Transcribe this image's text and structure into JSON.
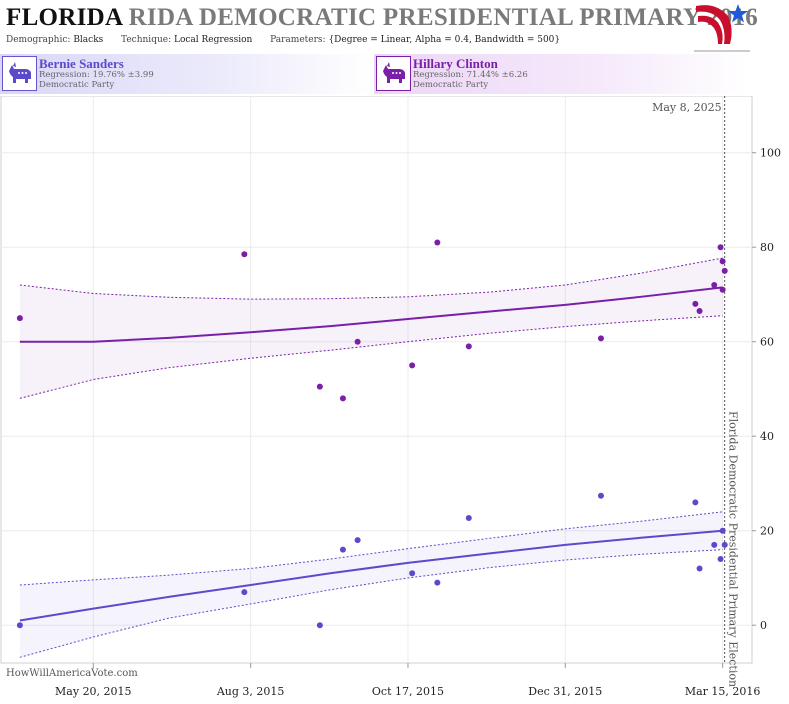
{
  "header": {
    "title_state": "FLORIDA",
    "title_rest": "RIDA DEMOCRATIC PRESIDENTIAL PRIMARY 2016",
    "demographic_label": "Demographic:",
    "demographic_value": "Blacks",
    "technique_label": "Technique:",
    "technique_value": "Local Regression",
    "parameters_label": "Parameters:",
    "parameters_value": "{Degree = Linear, Alpha = 0.4, Bandwidth = 500}"
  },
  "candidates": [
    {
      "name": "Bernie Sanders",
      "regression": "Regression: 19.76% ±3.99",
      "party": "Democratic Party",
      "color": "#5b4bcc"
    },
    {
      "name": "Hillary Clinton",
      "regression": "Regression: 71.44% ±6.26",
      "party": "Democratic Party",
      "color": "#7a1fa8"
    }
  ],
  "footer": {
    "source": "HowWillAmericaVote.com"
  },
  "chart_data": {
    "type": "scatter",
    "x_axis": {
      "ticks": [
        {
          "date": "2015-05-20",
          "label": "May 20, 2015"
        },
        {
          "date": "2015-08-03",
          "label": "Aug 3, 2015"
        },
        {
          "date": "2015-10-17",
          "label": "Oct 17, 2015"
        },
        {
          "date": "2015-12-31",
          "label": "Dec 31, 2015"
        },
        {
          "date": "2016-03-15",
          "label": "Mar 15, 2016"
        }
      ],
      "range": [
        "2015-04-06",
        "2016-03-29"
      ]
    },
    "y_axis": {
      "ticks": [
        0,
        20,
        40,
        60,
        80,
        100
      ],
      "range": [
        -8,
        112
      ],
      "position": "right"
    },
    "grid": true,
    "election_marker": {
      "date": "2016-03-15",
      "label": "Florida Democratic Presidential Primary Election"
    },
    "date_marker": {
      "label": "May 8, 2025"
    },
    "series": [
      {
        "name": "Hillary Clinton",
        "color": "#7a1fa8",
        "points": [
          {
            "x": "2015-04-15",
            "y": 65
          },
          {
            "x": "2015-07-31",
            "y": 78.5
          },
          {
            "x": "2015-09-05",
            "y": 50.5
          },
          {
            "x": "2015-09-16",
            "y": 48
          },
          {
            "x": "2015-09-23",
            "y": 60
          },
          {
            "x": "2015-10-19",
            "y": 55
          },
          {
            "x": "2015-10-31",
            "y": 81
          },
          {
            "x": "2015-11-15",
            "y": 59
          },
          {
            "x": "2016-01-17",
            "y": 60.7
          },
          {
            "x": "2016-03-02",
            "y": 68
          },
          {
            "x": "2016-03-04",
            "y": 66.5
          },
          {
            "x": "2016-03-11",
            "y": 72
          },
          {
            "x": "2016-03-14",
            "y": 80
          },
          {
            "x": "2016-03-15",
            "y": 77
          },
          {
            "x": "2016-03-16",
            "y": 75
          },
          {
            "x": "2016-03-15",
            "y": 71
          }
        ],
        "fit": [
          {
            "x": "2015-04-15",
            "y": 60.0,
            "lo": 48.0,
            "hi": 72.0
          },
          {
            "x": "2015-05-20",
            "y": 60.0,
            "lo": 52.0,
            "hi": 70.2
          },
          {
            "x": "2015-06-25",
            "y": 60.8,
            "lo": 54.5,
            "hi": 69.4
          },
          {
            "x": "2015-08-03",
            "y": 62.0,
            "lo": 56.5,
            "hi": 69.0
          },
          {
            "x": "2015-09-10",
            "y": 63.3,
            "lo": 58.2,
            "hi": 69.1
          },
          {
            "x": "2015-10-17",
            "y": 64.8,
            "lo": 60.0,
            "hi": 69.5
          },
          {
            "x": "2015-11-25",
            "y": 66.4,
            "lo": 61.8,
            "hi": 70.5
          },
          {
            "x": "2015-12-31",
            "y": 67.8,
            "lo": 63.2,
            "hi": 72.0
          },
          {
            "x": "2016-02-05",
            "y": 69.5,
            "lo": 64.4,
            "hi": 74.5
          },
          {
            "x": "2016-03-15",
            "y": 71.5,
            "lo": 65.5,
            "hi": 77.7
          }
        ]
      },
      {
        "name": "Bernie Sanders",
        "color": "#5b4bcc",
        "points": [
          {
            "x": "2015-04-15",
            "y": 0
          },
          {
            "x": "2015-07-31",
            "y": 7
          },
          {
            "x": "2015-09-05",
            "y": 0
          },
          {
            "x": "2015-09-16",
            "y": 16
          },
          {
            "x": "2015-09-23",
            "y": 18
          },
          {
            "x": "2015-10-19",
            "y": 11
          },
          {
            "x": "2015-10-31",
            "y": 9
          },
          {
            "x": "2015-11-15",
            "y": 22.7
          },
          {
            "x": "2016-01-17",
            "y": 27.4
          },
          {
            "x": "2016-03-02",
            "y": 26
          },
          {
            "x": "2016-03-04",
            "y": 12
          },
          {
            "x": "2016-03-11",
            "y": 17
          },
          {
            "x": "2016-03-14",
            "y": 14
          },
          {
            "x": "2016-03-15",
            "y": 20
          },
          {
            "x": "2016-03-16",
            "y": 17
          }
        ],
        "fit": [
          {
            "x": "2015-04-15",
            "y": 1.0,
            "lo": -6.8,
            "hi": 8.5
          },
          {
            "x": "2015-05-20",
            "y": 3.5,
            "lo": -2.5,
            "hi": 9.6
          },
          {
            "x": "2015-06-25",
            "y": 6.0,
            "lo": 1.5,
            "hi": 10.6
          },
          {
            "x": "2015-08-03",
            "y": 8.5,
            "lo": 4.5,
            "hi": 12.0
          },
          {
            "x": "2015-09-10",
            "y": 11.0,
            "lo": 7.5,
            "hi": 14.0
          },
          {
            "x": "2015-10-17",
            "y": 13.2,
            "lo": 10.0,
            "hi": 16.2
          },
          {
            "x": "2015-11-25",
            "y": 15.2,
            "lo": 12.2,
            "hi": 18.4
          },
          {
            "x": "2015-12-31",
            "y": 17.0,
            "lo": 13.8,
            "hi": 20.4
          },
          {
            "x": "2016-02-05",
            "y": 18.5,
            "lo": 15.0,
            "hi": 22.0
          },
          {
            "x": "2016-03-15",
            "y": 20.0,
            "lo": 16.0,
            "hi": 24.0
          }
        ]
      }
    ]
  }
}
